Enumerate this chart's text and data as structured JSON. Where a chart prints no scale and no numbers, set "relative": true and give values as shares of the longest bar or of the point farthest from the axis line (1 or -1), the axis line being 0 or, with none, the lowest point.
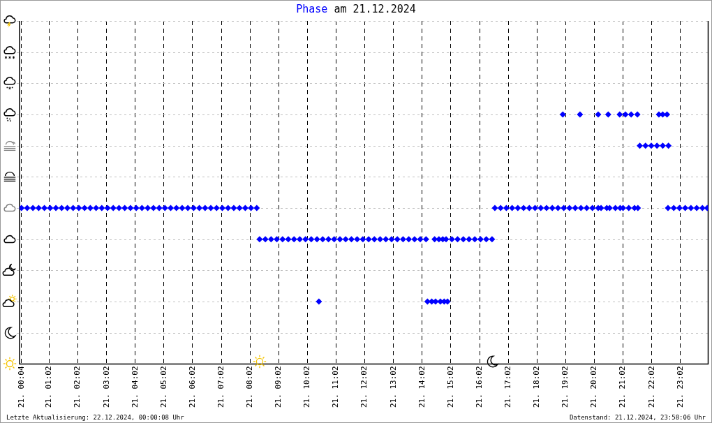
{
  "chart_data": {
    "type": "scatter",
    "title": "am 21.12.2024",
    "relative": true,
    "marker": "diamond",
    "grid": true,
    "xlim": [
      "2024-12-21T00:00",
      "2024-12-22T00:00"
    ],
    "xticks": [
      {
        "value": "2024-12-21T00:04",
        "label": "21. 00:04"
      },
      {
        "value": "2024-12-21T01:02",
        "label": "21. 01:02"
      },
      {
        "value": "2024-12-21T02:02",
        "label": "21. 02:02"
      },
      {
        "value": "2024-12-21T03:02",
        "label": "21. 03:02"
      },
      {
        "value": "2024-12-21T04:02",
        "label": "21. 04:02"
      },
      {
        "value": "2024-12-21T05:02",
        "label": "21. 05:02"
      },
      {
        "value": "2024-12-21T06:02",
        "label": "21. 06:02"
      },
      {
        "value": "2024-12-21T07:02",
        "label": "21. 07:02"
      },
      {
        "value": "2024-12-21T08:02",
        "label": "21. 08:02"
      },
      {
        "value": "2024-12-21T09:02",
        "label": "21. 09:02"
      },
      {
        "value": "2024-12-21T10:02",
        "label": "21. 10:02"
      },
      {
        "value": "2024-12-21T11:02",
        "label": "21. 11:02"
      },
      {
        "value": "2024-12-21T12:02",
        "label": "21. 12:02"
      },
      {
        "value": "2024-12-21T13:02",
        "label": "21. 13:02"
      },
      {
        "value": "2024-12-21T14:02",
        "label": "21. 14:02"
      },
      {
        "value": "2024-12-21T15:02",
        "label": "21. 15:02"
      },
      {
        "value": "2024-12-21T16:02",
        "label": "21. 16:02"
      },
      {
        "value": "2024-12-21T17:02",
        "label": "21. 17:02"
      },
      {
        "value": "2024-12-21T18:02",
        "label": "21. 18:02"
      },
      {
        "value": "2024-12-21T19:02",
        "label": "21. 19:02"
      },
      {
        "value": "2024-12-21T20:02",
        "label": "21. 20:02"
      },
      {
        "value": "2024-12-21T21:02",
        "label": "21. 21:02"
      },
      {
        "value": "2024-12-21T22:02",
        "label": "21. 22:02"
      },
      {
        "value": "2024-12-21T23:02",
        "label": "21. 23:02"
      }
    ],
    "annotations": [
      "Letzte Aktualisierung: 22.12.2024, 00:00:08 Uhr",
      "Datenstand: 21.12.2024, 23:58:06 Uhr"
    ],
    "series": [
      {
        "name": "Phase",
        "color": "#0000ff",
        "x": [
          "2024-12-21T00:04",
          "2024-12-21T00:16",
          "2024-12-21T00:28",
          "2024-12-21T00:40",
          "2024-12-21T00:52",
          "2024-12-21T01:04",
          "2024-12-21T01:16",
          "2024-12-21T01:28",
          "2024-12-21T01:40",
          "2024-12-21T01:52",
          "2024-12-21T02:04",
          "2024-12-21T02:16",
          "2024-12-21T02:28",
          "2024-12-21T02:40",
          "2024-12-21T02:52",
          "2024-12-21T03:04",
          "2024-12-21T03:16",
          "2024-12-21T03:28",
          "2024-12-21T03:40",
          "2024-12-21T03:52",
          "2024-12-21T04:04",
          "2024-12-21T04:16",
          "2024-12-21T04:28",
          "2024-12-21T04:40",
          "2024-12-21T04:52",
          "2024-12-21T05:04",
          "2024-12-21T05:16",
          "2024-12-21T05:28",
          "2024-12-21T05:40",
          "2024-12-21T05:52",
          "2024-12-21T06:04",
          "2024-12-21T06:16",
          "2024-12-21T06:28",
          "2024-12-21T06:40",
          "2024-12-21T06:52",
          "2024-12-21T07:04",
          "2024-12-21T07:16",
          "2024-12-21T07:28",
          "2024-12-21T07:40",
          "2024-12-21T07:52",
          "2024-12-21T08:04",
          "2024-12-21T08:16",
          "2024-12-21T08:22",
          "2024-12-21T08:34",
          "2024-12-21T08:46",
          "2024-12-21T08:58",
          "2024-12-21T09:10",
          "2024-12-21T09:22",
          "2024-12-21T09:34",
          "2024-12-21T09:46",
          "2024-12-21T09:58",
          "2024-12-21T10:10",
          "2024-12-21T10:22",
          "2024-12-21T10:34",
          "2024-12-21T10:46",
          "2024-12-21T10:58",
          "2024-12-21T11:10",
          "2024-12-21T11:22",
          "2024-12-21T11:34",
          "2024-12-21T11:46",
          "2024-12-21T11:58",
          "2024-12-21T12:10",
          "2024-12-21T12:22",
          "2024-12-21T12:34",
          "2024-12-21T12:46",
          "2024-12-21T12:58",
          "2024-12-21T13:10",
          "2024-12-21T13:22",
          "2024-12-21T13:34",
          "2024-12-21T13:46",
          "2024-12-21T13:58",
          "2024-12-21T14:10",
          "2024-12-21T14:28",
          "2024-12-21T14:37",
          "2024-12-21T14:45",
          "2024-12-21T14:52",
          "2024-12-21T15:04",
          "2024-12-21T15:16",
          "2024-12-21T15:28",
          "2024-12-21T15:40",
          "2024-12-21T15:52",
          "2024-12-21T16:04",
          "2024-12-21T16:16",
          "2024-12-21T16:28",
          "2024-12-21T10:26",
          "2024-12-21T14:13",
          "2024-12-21T14:22",
          "2024-12-21T14:30",
          "2024-12-21T14:40",
          "2024-12-21T14:48",
          "2024-12-21T14:55",
          "2024-12-21T16:34",
          "2024-12-21T16:46",
          "2024-12-21T16:58",
          "2024-12-21T17:10",
          "2024-12-21T17:22",
          "2024-12-21T17:34",
          "2024-12-21T17:46",
          "2024-12-21T17:58",
          "2024-12-21T18:10",
          "2024-12-21T18:22",
          "2024-12-21T18:34",
          "2024-12-21T18:46",
          "2024-12-21T18:58",
          "2024-12-21T19:10",
          "2024-12-21T19:22",
          "2024-12-21T19:34",
          "2024-12-21T19:46",
          "2024-12-21T19:58",
          "2024-12-21T20:10",
          "2024-12-21T20:16",
          "2024-12-21T20:28",
          "2024-12-21T20:34",
          "2024-12-21T20:46",
          "2024-12-21T20:56",
          "2024-12-21T21:02",
          "2024-12-21T21:14",
          "2024-12-21T21:26",
          "2024-12-21T21:33",
          "2024-12-21T22:36",
          "2024-12-21T22:48",
          "2024-12-21T23:00",
          "2024-12-21T23:12",
          "2024-12-21T23:24",
          "2024-12-21T23:36",
          "2024-12-21T23:48",
          "2024-12-21T23:58",
          "2024-12-21T18:56",
          "2024-12-21T19:32",
          "2024-12-21T20:10",
          "2024-12-21T20:31",
          "2024-12-21T20:55",
          "2024-12-21T21:07",
          "2024-12-21T21:19",
          "2024-12-21T21:32",
          "2024-12-21T22:17",
          "2024-12-21T22:25",
          "2024-12-21T22:34",
          "2024-12-21T21:37",
          "2024-12-21T21:49",
          "2024-12-21T22:01",
          "2024-12-21T22:13",
          "2024-12-21T22:25",
          "2024-12-21T22:37"
        ],
        "values": [
          0.625,
          0.625,
          0.625,
          0.625,
          0.625,
          0.625,
          0.625,
          0.625,
          0.625,
          0.625,
          0.625,
          0.625,
          0.625,
          0.625,
          0.625,
          0.625,
          0.625,
          0.625,
          0.625,
          0.625,
          0.625,
          0.625,
          0.625,
          0.625,
          0.625,
          0.625,
          0.625,
          0.625,
          0.625,
          0.625,
          0.625,
          0.625,
          0.625,
          0.625,
          0.625,
          0.625,
          0.625,
          0.625,
          0.625,
          0.625,
          0.625,
          0.625,
          0.5,
          0.5,
          0.5,
          0.5,
          0.5,
          0.5,
          0.5,
          0.5,
          0.5,
          0.5,
          0.5,
          0.5,
          0.5,
          0.5,
          0.5,
          0.5,
          0.5,
          0.5,
          0.5,
          0.5,
          0.5,
          0.5,
          0.5,
          0.5,
          0.5,
          0.5,
          0.5,
          0.5,
          0.5,
          0.5,
          0.5,
          0.5,
          0.5,
          0.5,
          0.5,
          0.5,
          0.5,
          0.5,
          0.5,
          0.5,
          0.5,
          0.5,
          0.25,
          0.25,
          0.25,
          0.25,
          0.25,
          0.25,
          0.25,
          0.625,
          0.625,
          0.625,
          0.625,
          0.625,
          0.625,
          0.625,
          0.625,
          0.625,
          0.625,
          0.625,
          0.625,
          0.625,
          0.625,
          0.625,
          0.625,
          0.625,
          0.625,
          0.625,
          0.625,
          0.625,
          0.625,
          0.625,
          0.625,
          0.625,
          0.625,
          0.625,
          0.625,
          0.625,
          0.625,
          0.625,
          0.625,
          0.625,
          0.625,
          0.625,
          0.625,
          1,
          1,
          1,
          1,
          1,
          1,
          1,
          1,
          1,
          1,
          1,
          0.875,
          0.875,
          0.875,
          0.875,
          0.875,
          0.875
        ]
      }
    ]
  }
}
